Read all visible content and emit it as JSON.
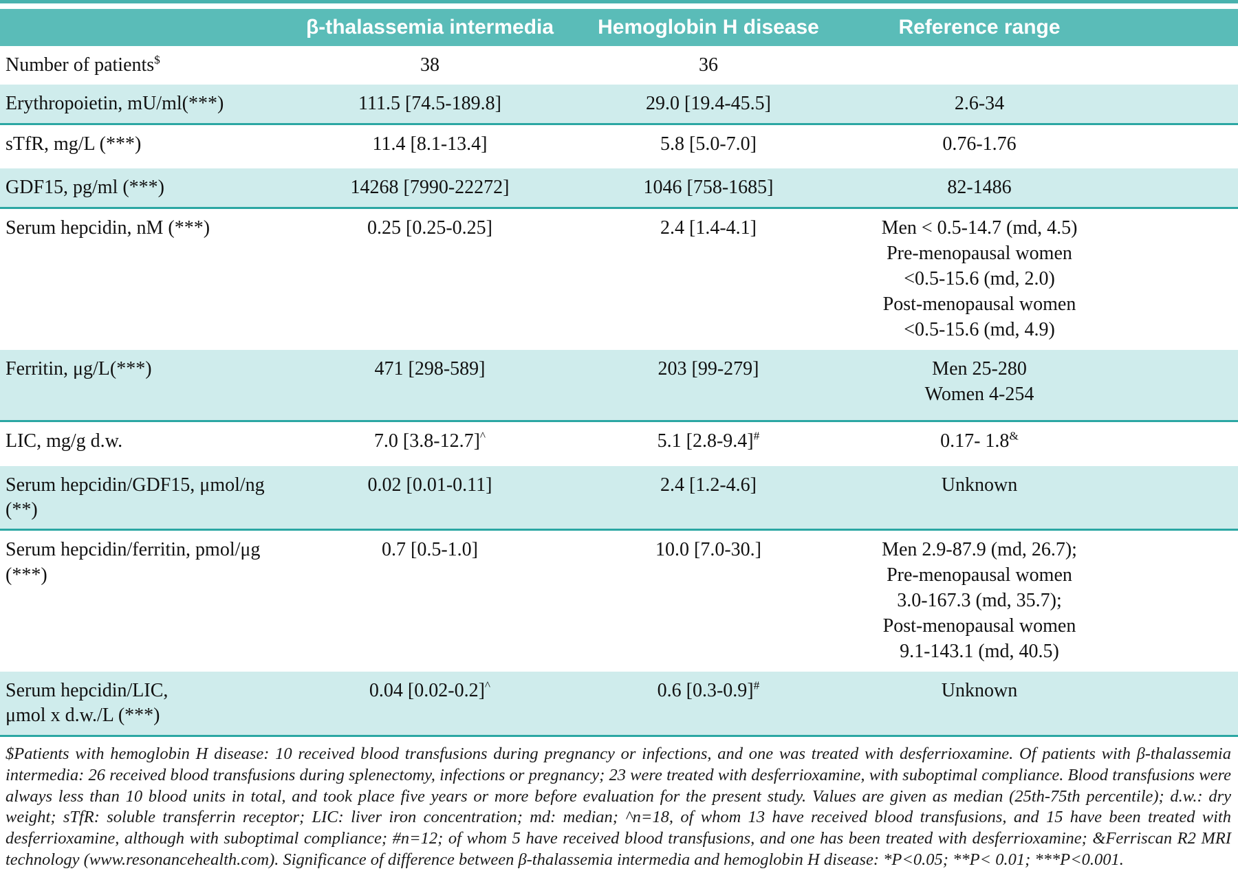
{
  "colors": {
    "header_teal": "#5abcb8",
    "row_band_teal": "#cfecec",
    "rule_teal": "#2ba7a3",
    "top_rule_teal": "#49b2ae"
  },
  "table": {
    "columns": [
      "",
      "β-thalassemia intermedia",
      "Hemoglobin H disease",
      "Reference range"
    ],
    "rows": [
      {
        "label": "Number of patients",
        "label_sup": "$",
        "c1": "38",
        "c2": "36",
        "c3": ""
      },
      {
        "label": "Erythropoietin, mU/ml(***)",
        "c1": "111.5 [74.5-189.8]",
        "c2": "29.0 [19.4-45.5]",
        "c3": "2.6-34"
      },
      {
        "label": "sTfR, mg/L (***)",
        "c1": "11.4 [8.1-13.4]",
        "c2": "5.8 [5.0-7.0]",
        "c3": "0.76-1.76"
      },
      {
        "label": "GDF15, pg/ml (***)",
        "c1": "14268 [7990-22272]",
        "c2": "1046 [758-1685]",
        "c3": "82-1486"
      },
      {
        "label": "Serum hepcidin, nM  (***)",
        "c1": "0.25 [0.25-0.25]",
        "c2": "2.4 [1.4-4.1]",
        "c3": "Men < 0.5-14.7 (md, 4.5)\nPre-menopausal women\n<0.5-15.6 (md, 2.0)\nPost-menopausal women\n<0.5-15.6 (md, 4.9)"
      },
      {
        "label": "Ferritin, μg/L(***)",
        "c1": "471 [298-589]",
        "c2": "203 [99-279]",
        "c3": "Men 25-280\nWomen 4-254"
      },
      {
        "label": "LIC, mg/g d.w.",
        "c1": "7.0 [3.8-12.7]",
        "c1_sup": "^",
        "c2": "5.1 [2.8-9.4]",
        "c2_sup": "#",
        "c3": "0.17- 1.8",
        "c3_sup": "&"
      },
      {
        "label": "Serum hepcidin/GDF15, μmol/ng (**)",
        "c1": "0.02 [0.01-0.11]",
        "c2": "2.4 [1.2-4.6]",
        "c3": "Unknown"
      },
      {
        "label": "Serum hepcidin/ferritin, pmol/μg  (***)",
        "c1": "0.7 [0.5-1.0]",
        "c2": "10.0 [7.0-30.]",
        "c3": "Men 2.9-87.9 (md, 26.7);\nPre-menopausal women\n3.0-167.3 (md, 35.7);\nPost-menopausal women\n9.1-143.1 (md, 40.5)"
      },
      {
        "label": "Serum hepcidin/LIC,\nμmol x d.w./L (***)",
        "c1": "0.04 [0.02-0.2]",
        "c1_sup": "^",
        "c2": "0.6 [0.3-0.9]",
        "c2_sup": "#",
        "c3": "Unknown"
      }
    ]
  },
  "footnote": "$Patients with hemoglobin H disease: 10 received blood transfusions during pregnancy or infections, and one was treated with desferrioxamine. Of patients with β-thalassemia intermedia: 26 received blood transfusions during splenectomy, infections or pregnancy; 23 were treated with desferrioxamine, with suboptimal compliance. Blood transfusions were always less than 10 blood units in total, and took place five years or more before evaluation for the present study. Values are given as median (25th-75th percentile); d.w.: dry weight; sTfR: soluble transferrin receptor; LIC: liver iron concentration; md: median; ^n=18, of whom 13 have received blood transfusions, and 15 have been treated with desferrioxamine, although with suboptimal compliance; #n=12; of whom 5 have received blood transfusions, and one has been treated with desferrioxamine; &Ferriscan R2 MRI technology (www.resonancehealth.com).  Significance of difference between β-thalassemia intermedia and hemoglobin H disease: *P<0.05; **P< 0.01;  ***P<0.001."
}
